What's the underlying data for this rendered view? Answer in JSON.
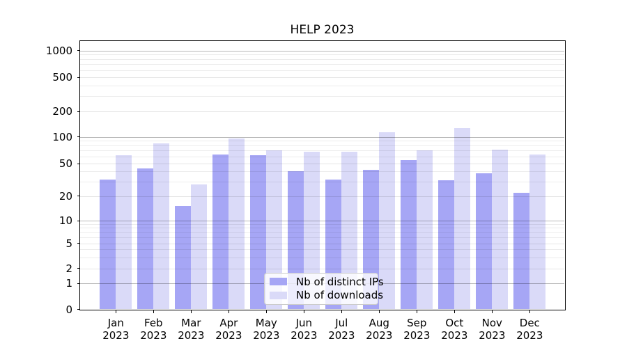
{
  "title": "HELP 2023",
  "colors": {
    "background": "#ffffff",
    "axis": "#000000",
    "ips_bar": "#a6a6f5",
    "downloads_bar": "#dadaf8"
  },
  "chart_data": {
    "type": "bar",
    "title": "HELP 2023",
    "categories": [
      "Jan 2023",
      "Feb 2023",
      "Mar 2023",
      "Apr 2023",
      "May 2023",
      "Jun 2023",
      "Jul 2023",
      "Aug 2023",
      "Sep 2023",
      "Oct 2023",
      "Nov 2023",
      "Dec 2023"
    ],
    "series": [
      {
        "name": "Nb of distinct IPs",
        "color": "#a6a6f5",
        "values": [
          32,
          44,
          15,
          63,
          62,
          40,
          32,
          42,
          55,
          31,
          38,
          22
        ]
      },
      {
        "name": "Nb of downloads",
        "color": "#dadaf8",
        "values": [
          62,
          84,
          28,
          95,
          70,
          68,
          68,
          114,
          70,
          126,
          72,
          63
        ]
      }
    ],
    "xlabel": "",
    "ylabel": "",
    "yscale": "log-with-zero",
    "y_ticks": [
      0,
      1,
      2,
      5,
      10,
      20,
      50,
      100,
      200,
      500,
      1000
    ],
    "ylim": [
      0,
      1200
    ],
    "grid": true,
    "grid_on_top": true,
    "legend_position": "lower center"
  }
}
